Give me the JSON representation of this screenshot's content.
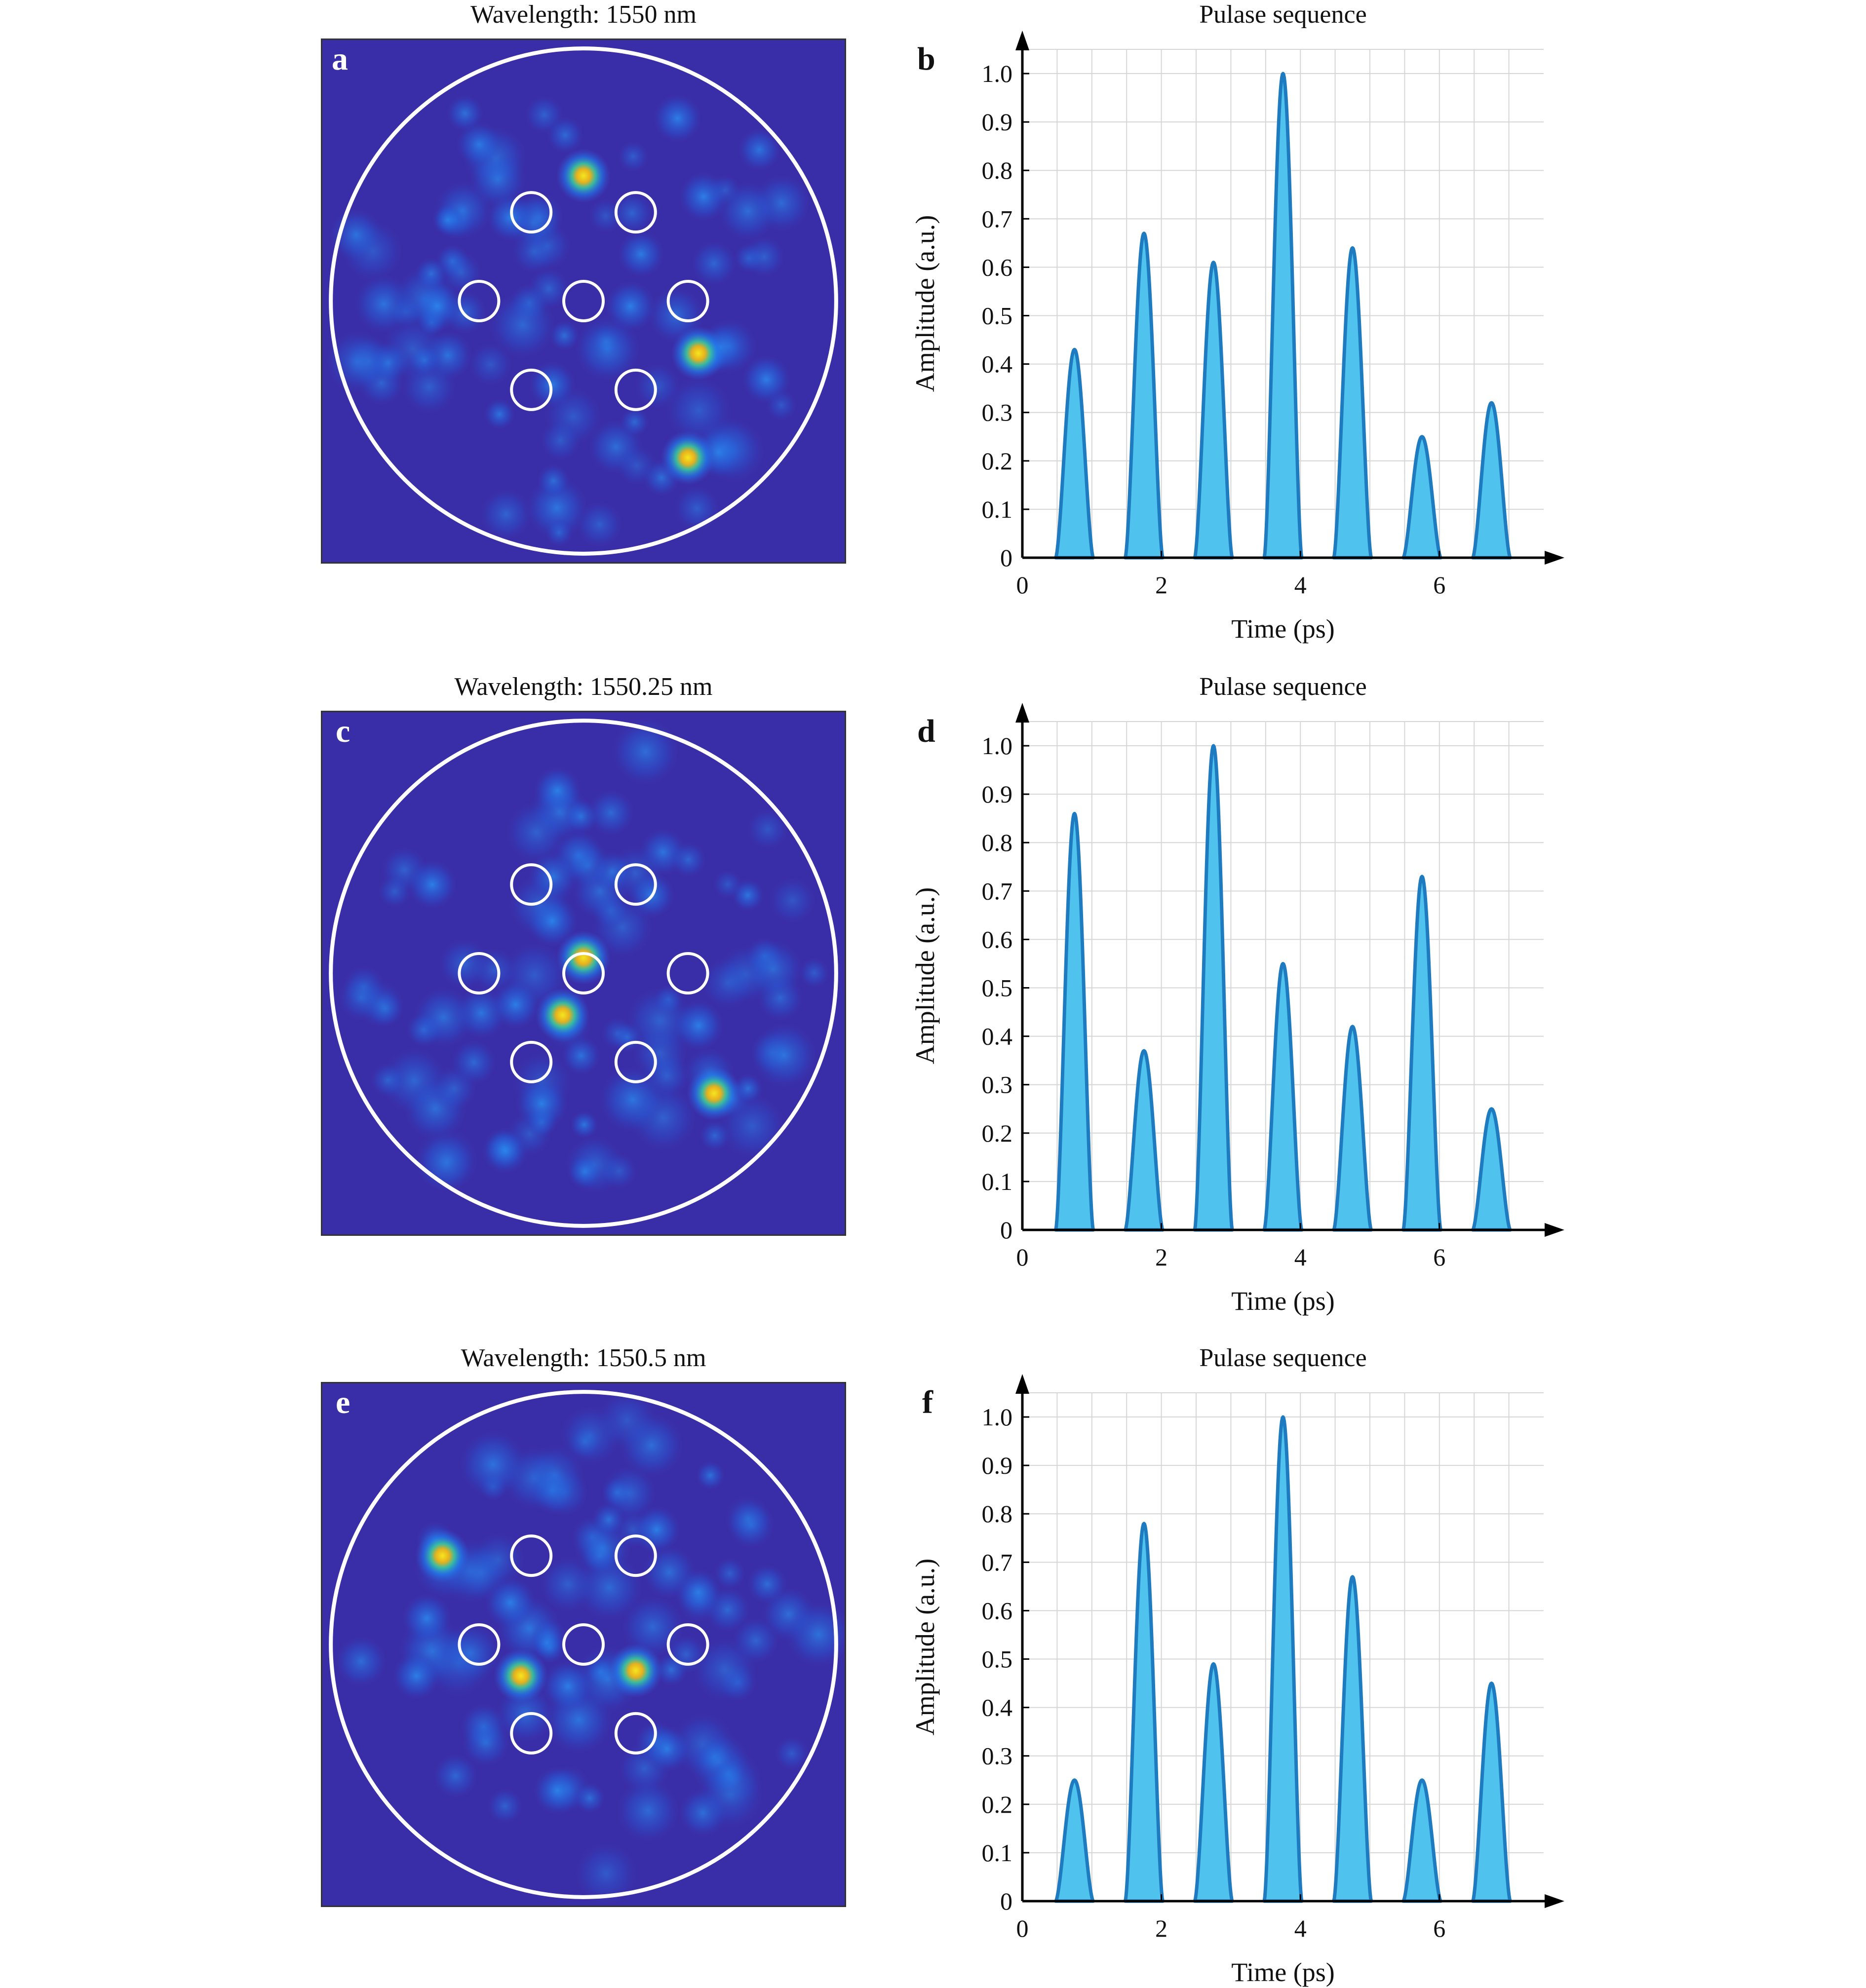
{
  "figure": {
    "panels": [
      {
        "id": "a",
        "kind": "speckle",
        "title": "Wavelength: 1550 nm",
        "letter": "a",
        "hotspots": [
          {
            "u": 0.5,
            "v": 0.26,
            "level": 1.0
          },
          {
            "u": 0.72,
            "v": 0.6,
            "level": 0.95
          },
          {
            "u": 0.7,
            "v": 0.8,
            "level": 0.85
          },
          {
            "u": 0.59,
            "v": 0.51,
            "level": 0.55
          },
          {
            "u": 0.22,
            "v": 0.51,
            "level": 0.55
          },
          {
            "u": 0.68,
            "v": 0.15,
            "level": 0.45
          },
          {
            "u": 0.73,
            "v": 0.3,
            "level": 0.5
          },
          {
            "u": 0.36,
            "v": 0.34,
            "level": 0.4
          },
          {
            "u": 0.85,
            "v": 0.65,
            "level": 0.45
          },
          {
            "u": 0.44,
            "v": 0.66,
            "level": 0.35
          },
          {
            "u": 0.3,
            "v": 0.2,
            "level": 0.3
          },
          {
            "u": 0.61,
            "v": 0.41,
            "level": 0.35
          }
        ]
      },
      {
        "id": "c",
        "kind": "speckle",
        "title": "Wavelength: 1550.25 nm",
        "letter": "c",
        "hotspots": [
          {
            "u": 0.46,
            "v": 0.58,
            "level": 1.0
          },
          {
            "u": 0.75,
            "v": 0.73,
            "level": 0.95
          },
          {
            "u": 0.5,
            "v": 0.47,
            "level": 0.75
          },
          {
            "u": 0.44,
            "v": 0.4,
            "level": 0.6
          },
          {
            "u": 0.42,
            "v": 0.75,
            "level": 0.65
          },
          {
            "u": 0.72,
            "v": 0.6,
            "level": 0.55
          },
          {
            "u": 0.21,
            "v": 0.33,
            "level": 0.5
          },
          {
            "u": 0.37,
            "v": 0.56,
            "level": 0.45
          },
          {
            "u": 0.45,
            "v": 0.15,
            "level": 0.4
          },
          {
            "u": 0.35,
            "v": 0.84,
            "level": 0.35
          },
          {
            "u": 0.63,
            "v": 0.35,
            "level": 0.35
          }
        ]
      },
      {
        "id": "e",
        "kind": "speckle",
        "title": "Wavelength: 1550.5 nm",
        "letter": "e",
        "hotspots": [
          {
            "u": 0.23,
            "v": 0.33,
            "level": 1.0
          },
          {
            "u": 0.38,
            "v": 0.56,
            "level": 0.95
          },
          {
            "u": 0.6,
            "v": 0.55,
            "level": 1.0
          },
          {
            "u": 0.47,
            "v": 0.58,
            "level": 0.6
          },
          {
            "u": 0.36,
            "v": 0.42,
            "level": 0.6
          },
          {
            "u": 0.2,
            "v": 0.45,
            "level": 0.5
          },
          {
            "u": 0.45,
            "v": 0.78,
            "level": 0.45
          },
          {
            "u": 0.64,
            "v": 0.28,
            "level": 0.4
          },
          {
            "u": 0.72,
            "v": 0.4,
            "level": 0.35
          },
          {
            "u": 0.18,
            "v": 0.56,
            "level": 0.4
          },
          {
            "u": 0.66,
            "v": 0.7,
            "level": 0.35
          }
        ]
      }
    ]
  },
  "chart_data": [
    {
      "panel": "b",
      "type": "area",
      "title": "Pulase sequence",
      "xlabel": "Time (ps)",
      "ylabel": "Amplitude (a.u.)",
      "xlim": [
        0,
        7.5
      ],
      "ylim": [
        0,
        1.05
      ],
      "xticks": [
        "0",
        "2",
        "4",
        "6"
      ],
      "yticks": [
        "0",
        "0.1",
        "0.2",
        "0.3",
        "0.4",
        "0.5",
        "0.6",
        "0.7",
        "0.8",
        "0.9",
        "1.0"
      ],
      "pulse_centers": [
        0.75,
        1.75,
        2.75,
        3.75,
        4.75,
        5.75,
        6.75
      ],
      "pulse_halfwidth": 0.27,
      "amplitudes": [
        0.43,
        0.67,
        0.61,
        1.0,
        0.64,
        0.25,
        0.32
      ],
      "grid": true,
      "accent": "#4fc3ee",
      "stroke": "#1f7bbf"
    },
    {
      "panel": "d",
      "type": "area",
      "title": "Pulase sequence",
      "xlabel": "Time (ps)",
      "ylabel": "Amplitude (a.u.)",
      "xlim": [
        0,
        7.5
      ],
      "ylim": [
        0,
        1.05
      ],
      "xticks": [
        "0",
        "2",
        "4",
        "6"
      ],
      "yticks": [
        "0",
        "0.1",
        "0.2",
        "0.3",
        "0.4",
        "0.5",
        "0.6",
        "0.7",
        "0.8",
        "0.9",
        "1.0"
      ],
      "pulse_centers": [
        0.75,
        1.75,
        2.75,
        3.75,
        4.75,
        5.75,
        6.75
      ],
      "pulse_halfwidth": 0.27,
      "amplitudes": [
        0.86,
        0.37,
        1.0,
        0.55,
        0.42,
        0.73,
        0.25
      ],
      "grid": true,
      "accent": "#4fc3ee",
      "stroke": "#1f7bbf"
    },
    {
      "panel": "f",
      "type": "area",
      "title": "Pulase sequence",
      "xlabel": "Time (ps)",
      "ylabel": "Amplitude (a.u.)",
      "xlim": [
        0,
        7.5
      ],
      "ylim": [
        0,
        1.05
      ],
      "xticks": [
        "0",
        "2",
        "4",
        "6"
      ],
      "yticks": [
        "0",
        "0.1",
        "0.2",
        "0.3",
        "0.4",
        "0.5",
        "0.6",
        "0.7",
        "0.8",
        "0.9",
        "1.0"
      ],
      "pulse_centers": [
        0.75,
        1.75,
        2.75,
        3.75,
        4.75,
        5.75,
        6.75
      ],
      "pulse_halfwidth": 0.27,
      "amplitudes": [
        0.25,
        0.78,
        0.49,
        1.0,
        0.67,
        0.25,
        0.45
      ],
      "grid": true,
      "accent": "#4fc3ee",
      "stroke": "#1f7bbf"
    }
  ],
  "colors": {
    "speckle_background": "#3a2ea8",
    "fiber_outline": "#ffffff",
    "core_outline": "#ffffff",
    "axis": "#000000",
    "grid": "#d6d6d6"
  }
}
